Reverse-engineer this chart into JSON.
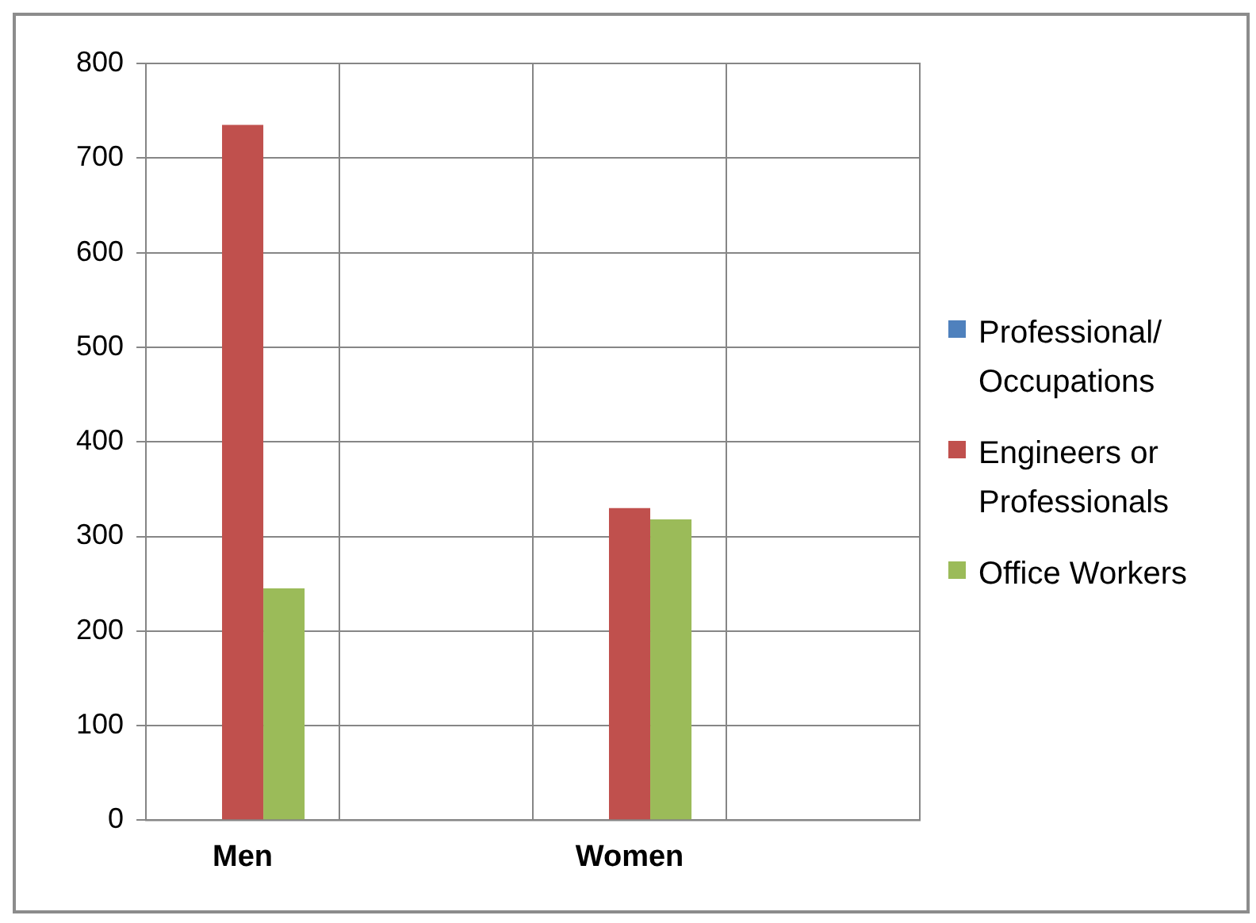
{
  "chart_data": {
    "type": "bar",
    "categories": [
      "Men",
      null,
      "Women",
      null
    ],
    "series": [
      {
        "name": "Professional/ Occupations",
        "color": "#4f81bd",
        "values": [
          0,
          null,
          0,
          null
        ]
      },
      {
        "name": "Engineers or Professionals",
        "color": "#c0504d",
        "values": [
          735,
          null,
          330,
          null
        ]
      },
      {
        "name": "Office Workers",
        "color": "#9bbb59",
        "values": [
          245,
          null,
          318,
          null
        ]
      }
    ],
    "ylim": [
      0,
      800
    ],
    "yticks": [
      0,
      100,
      200,
      300,
      400,
      500,
      600,
      700,
      800
    ],
    "grid": true,
    "legend": "right"
  }
}
